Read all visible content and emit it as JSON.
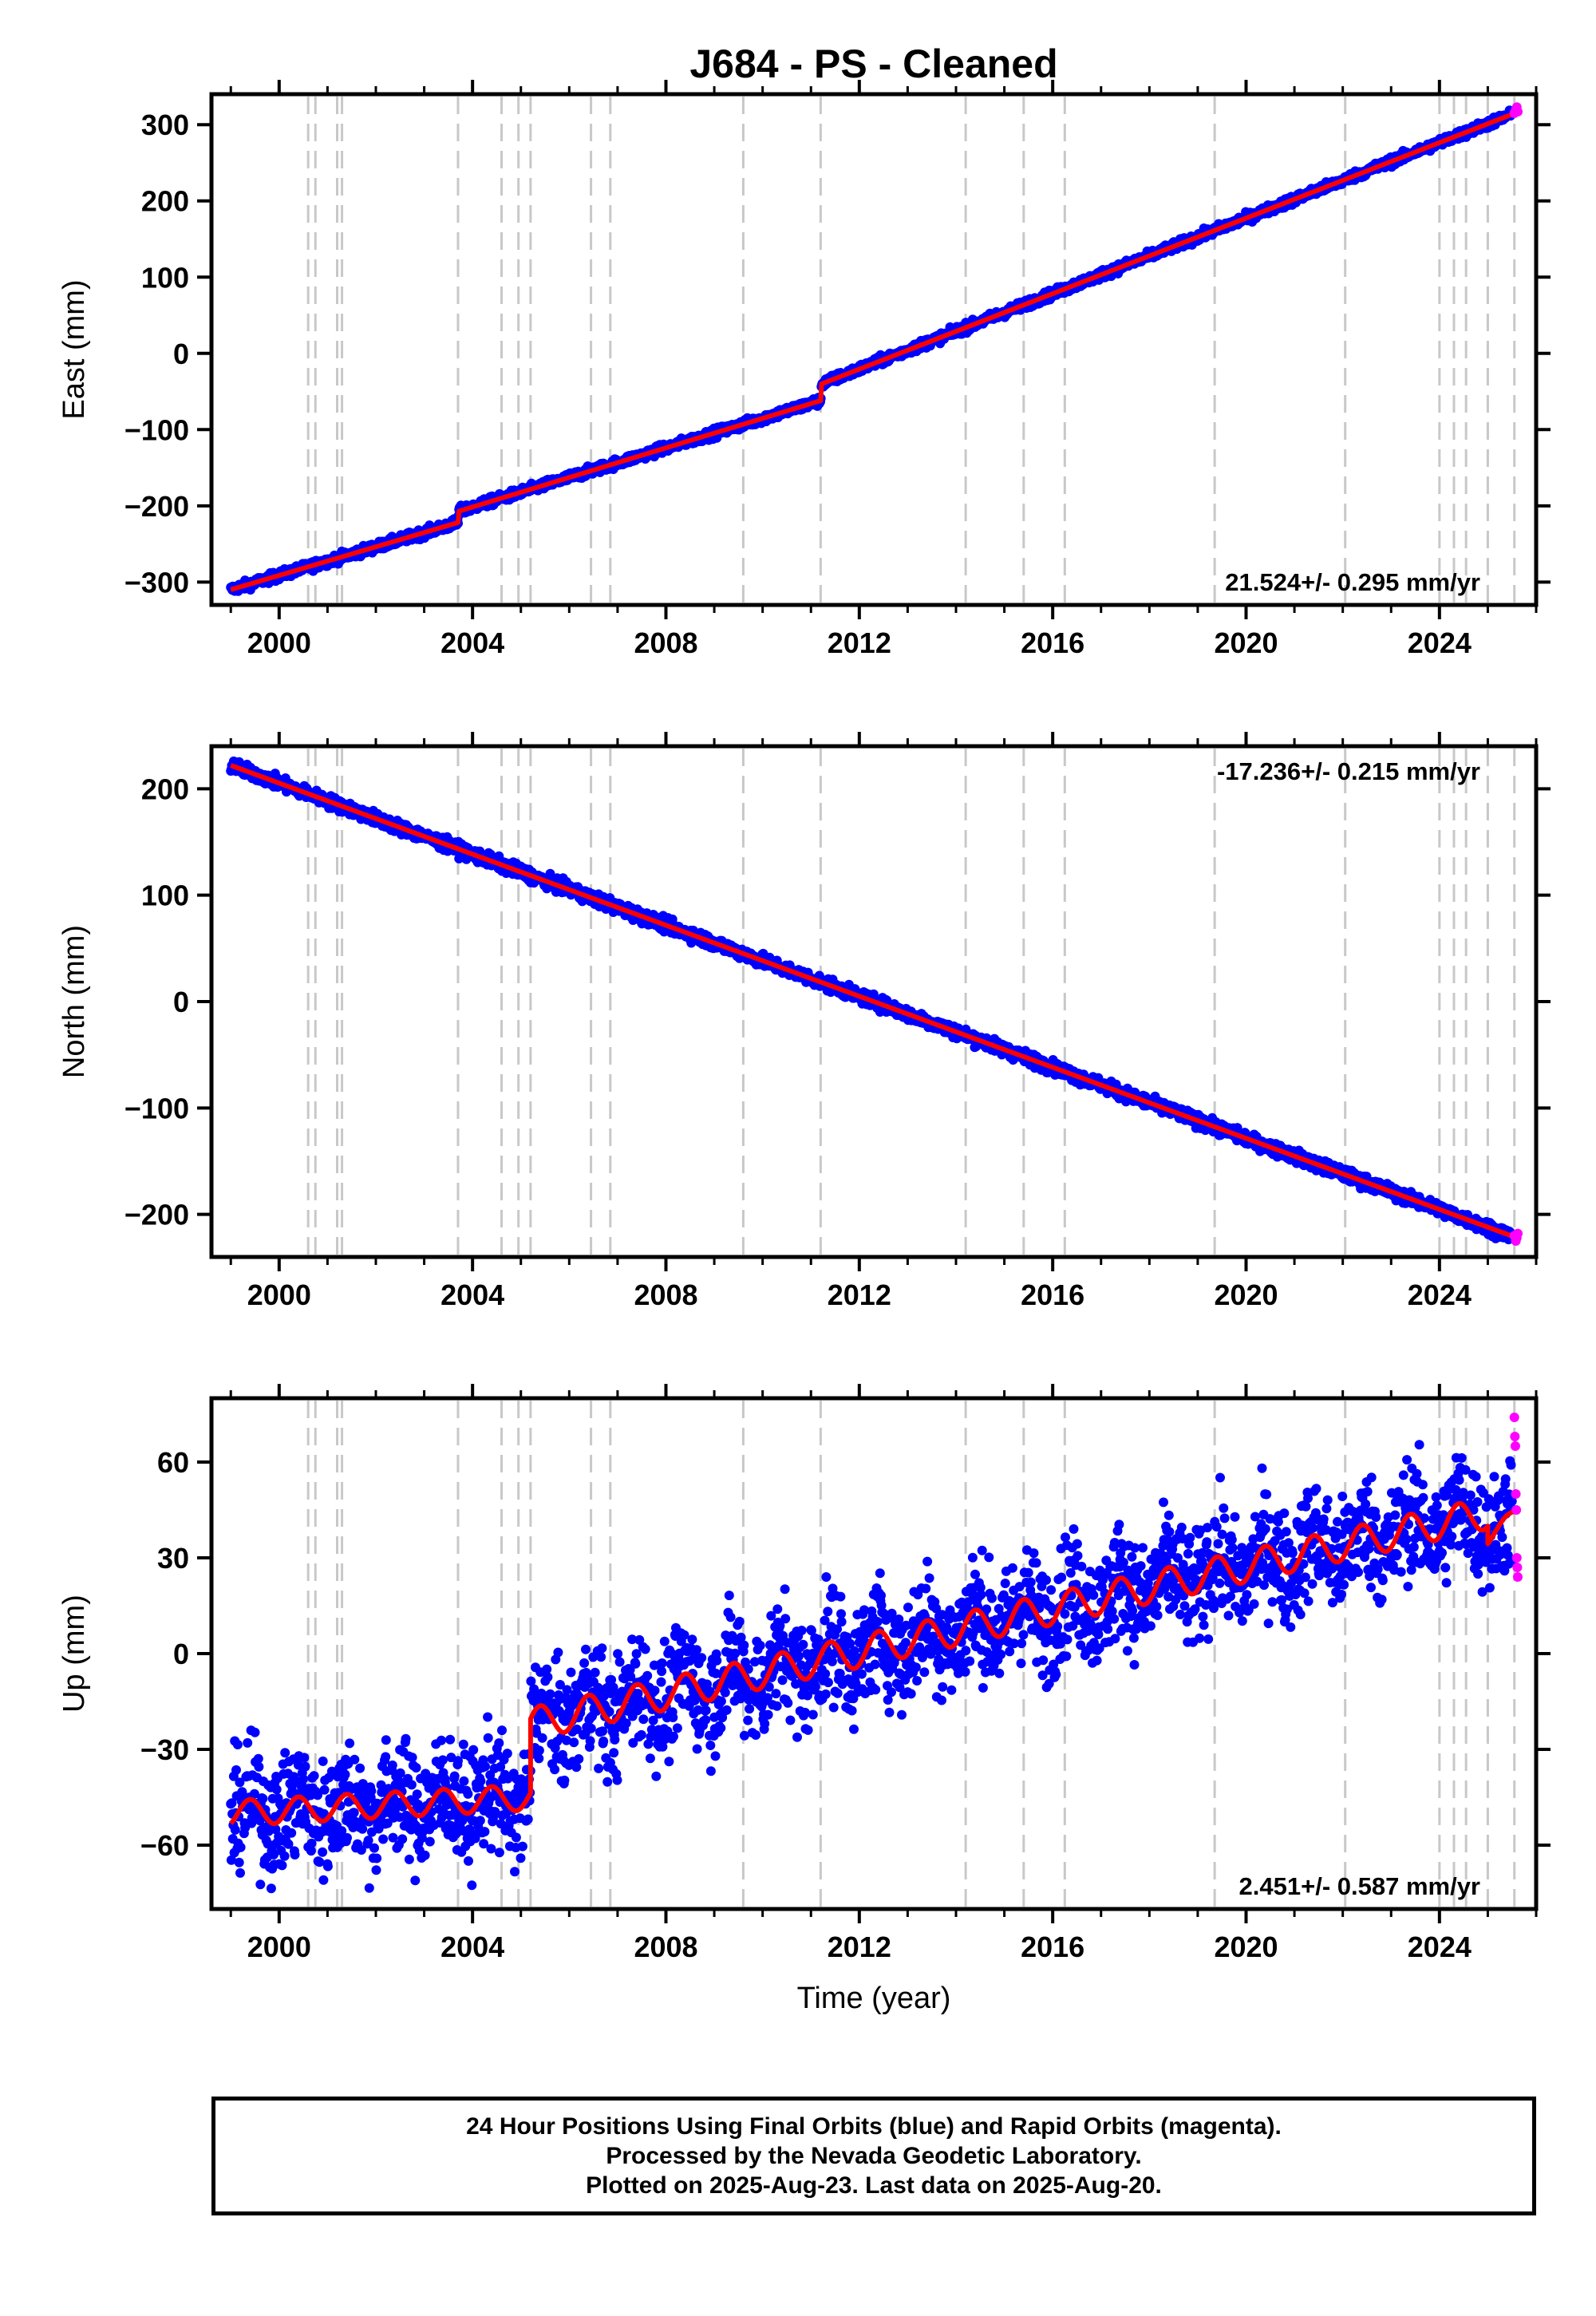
{
  "title": "J684  - PS - Cleaned",
  "x_axis_label": "Time (year)",
  "caption": [
    "24 Hour Positions Using Final Orbits (blue) and Rapid Orbits (magenta).",
    "Processed by the Nevada Geodetic Laboratory.",
    "Plotted on 2025-Aug-23. Last data on 2025-Aug-20."
  ],
  "colors": {
    "final_orbits": "#0000ff",
    "rapid_orbits": "#ff00ff",
    "model_fit": "#ff0000",
    "event_lines": "#c8c8c8",
    "frame": "#000000"
  },
  "chart_data": [
    {
      "type": "scatter",
      "ylabel": "East (mm)",
      "xlabel": "",
      "xlim": [
        1998.6,
        2026.0
      ],
      "ylim": [
        -330,
        340
      ],
      "x_ticks": [
        "2000",
        "2004",
        "2008",
        "2012",
        "2016",
        "2020",
        "2024"
      ],
      "y_ticks": [
        "−300",
        "−200",
        "−100",
        "0",
        "100",
        "200",
        "300"
      ],
      "y_tick_values": [
        -300,
        -200,
        -100,
        0,
        100,
        200,
        300
      ],
      "rate_label": "21.524+/- 0.295 mm/yr",
      "rate_label_position": "bottom-right",
      "series": [
        {
          "name": "Final Orbits",
          "color": "blue",
          "start": [
            1999.0,
            -310
          ],
          "end": [
            2025.5,
            318
          ],
          "noise": 3
        },
        {
          "name": "Rapid Orbits",
          "color": "magenta",
          "x": [
            2025.55,
            2025.58,
            2025.6,
            2025.62
          ],
          "y": [
            315,
            320,
            323,
            317
          ]
        },
        {
          "name": "Model",
          "color": "red",
          "x": [
            1999.0,
            2003.7,
            2003.72,
            2011.2,
            2011.22,
            2025.6
          ],
          "y": [
            -310,
            -222,
            -207,
            -62,
            -40,
            316
          ]
        }
      ],
      "event_lines": [
        2000.6,
        2000.75,
        2001.2,
        2001.3,
        2003.7,
        2004.6,
        2004.95,
        2005.2,
        2006.45,
        2006.85,
        2009.6,
        2011.2,
        2014.2,
        2015.4,
        2016.25,
        2019.35,
        2022.05,
        2024.0,
        2024.3,
        2024.55,
        2025.0,
        2025.55
      ]
    },
    {
      "type": "scatter",
      "ylabel": "North (mm)",
      "xlabel": "",
      "xlim": [
        1998.6,
        2026.0
      ],
      "ylim": [
        -240,
        240
      ],
      "x_ticks": [
        "2000",
        "2004",
        "2008",
        "2012",
        "2016",
        "2020",
        "2024"
      ],
      "y_ticks": [
        "−200",
        "−100",
        "0",
        "100",
        "200"
      ],
      "y_tick_values": [
        -200,
        -100,
        0,
        100,
        200
      ],
      "rate_label": "-17.236+/- 0.215 mm/yr",
      "rate_label_position": "top-right",
      "series": [
        {
          "name": "Final Orbits",
          "color": "blue",
          "start": [
            1999.0,
            225
          ],
          "end": [
            2025.5,
            -222
          ],
          "noise": 3
        },
        {
          "name": "Rapid Orbits",
          "color": "magenta",
          "x": [
            2025.55,
            2025.58,
            2025.6,
            2025.62
          ],
          "y": [
            -220,
            -225,
            -222,
            -218
          ]
        },
        {
          "name": "Model",
          "color": "red",
          "x": [
            1999.0,
            2025.6
          ],
          "y": [
            222,
            -222
          ]
        }
      ],
      "event_lines": [
        2000.6,
        2000.75,
        2001.2,
        2001.3,
        2003.7,
        2004.6,
        2004.95,
        2005.2,
        2006.45,
        2006.85,
        2009.6,
        2011.2,
        2014.2,
        2015.4,
        2016.25,
        2019.35,
        2022.05,
        2024.0,
        2024.3,
        2024.55,
        2025.0,
        2025.55
      ]
    },
    {
      "type": "scatter",
      "ylabel": "Up (mm)",
      "xlabel": "Time (year)",
      "xlim": [
        1998.6,
        2026.0
      ],
      "ylim": [
        -80,
        80
      ],
      "x_ticks": [
        "2000",
        "2004",
        "2008",
        "2012",
        "2016",
        "2020",
        "2024"
      ],
      "y_ticks": [
        "−60",
        "−30",
        "0",
        "30",
        "60"
      ],
      "y_tick_values": [
        -60,
        -30,
        0,
        30,
        60
      ],
      "rate_label": "2.451+/- 0.587 mm/yr",
      "rate_label_position": "bottom-right",
      "series": [
        {
          "name": "Final Orbits",
          "color": "blue",
          "start": [
            1999.0,
            -50
          ],
          "end": [
            2025.5,
            45
          ],
          "noise": 9
        },
        {
          "name": "Rapid Orbits",
          "color": "magenta",
          "x": [
            2025.55,
            2025.56,
            2025.57,
            2025.58,
            2025.59,
            2025.6,
            2025.61,
            2025.62
          ],
          "y": [
            74,
            68,
            65,
            50,
            45,
            30,
            27,
            24
          ]
        },
        {
          "name": "Model",
          "color": "red",
          "segments": [
            {
              "x0": 1999.0,
              "x1": 2005.2,
              "y0": -50,
              "y1": -45,
              "amp": 4
            },
            {
              "x0": 2005.2,
              "x1": 2025.0,
              "y0": -22,
              "y1": 44,
              "amp": 5
            },
            {
              "x0": 2025.0,
              "x1": 2025.6,
              "y0": 36,
              "y1": 44,
              "amp": 2
            }
          ]
        }
      ],
      "event_lines": [
        2000.6,
        2000.75,
        2001.2,
        2001.3,
        2003.7,
        2004.6,
        2004.95,
        2005.2,
        2006.45,
        2006.85,
        2009.6,
        2011.2,
        2014.2,
        2015.4,
        2016.25,
        2019.35,
        2022.05,
        2024.0,
        2024.3,
        2024.55,
        2025.0,
        2025.55
      ]
    }
  ]
}
